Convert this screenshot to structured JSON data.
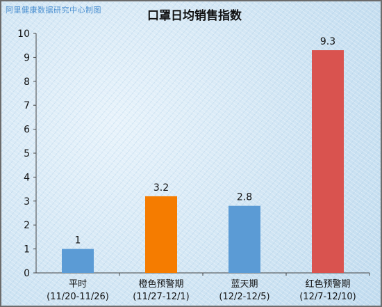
{
  "watermark": "阿里健康数据研究中心制图",
  "chart_data": {
    "type": "bar",
    "title": "口罩日均销售指数",
    "categories": [
      {
        "name": "平时",
        "range": "(11/20-11/26)"
      },
      {
        "name": "橙色预警期",
        "range": "(11/27-12/1)"
      },
      {
        "name": "蓝天期",
        "range": "(12/2-12/5)"
      },
      {
        "name": "红色预警期",
        "range": "(12/7-12/10)"
      }
    ],
    "values": [
      1,
      3.2,
      2.8,
      9.3
    ],
    "data_labels": [
      "1",
      "3.2",
      "2.8",
      "9.3"
    ],
    "colors": [
      "#5b9bd5",
      "#f57c00",
      "#5b9bd5",
      "#d9534f"
    ],
    "ylim": [
      0,
      10
    ],
    "yticks": [
      "0",
      "1",
      "2",
      "3",
      "4",
      "5",
      "6",
      "7",
      "8",
      "9",
      "10"
    ],
    "xlabel": "",
    "ylabel": "",
    "grid": false,
    "legend": "none"
  }
}
